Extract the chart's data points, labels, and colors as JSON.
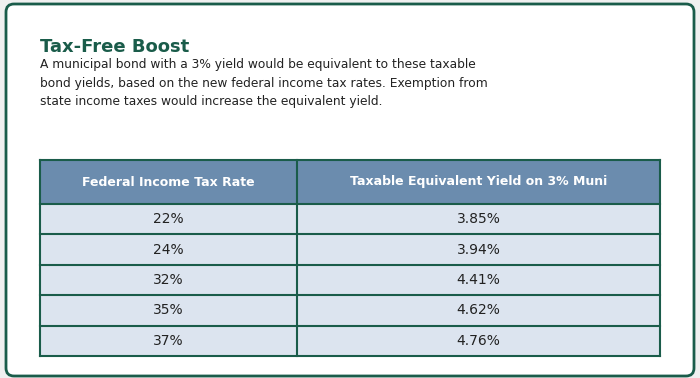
{
  "title": "Tax-Free Boost",
  "subtitle": "A municipal bond with a 3% yield would be equivalent to these taxable\nbond yields, based on the new federal income tax rates. Exemption from\nstate income taxes would increase the equivalent yield.",
  "col1_header": "Federal Income Tax Rate",
  "col2_header": "Taxable Equivalent Yield on 3% Muni",
  "rows": [
    [
      "22%",
      "3.85%"
    ],
    [
      "24%",
      "3.94%"
    ],
    [
      "32%",
      "4.41%"
    ],
    [
      "35%",
      "4.62%"
    ],
    [
      "37%",
      "4.76%"
    ]
  ],
  "header_bg": "#6b8cae",
  "row_bg": "#dce4ef",
  "border_color": "#1a5c4a",
  "title_color": "#1a5c4a",
  "header_text_color": "#ffffff",
  "row_text_color": "#222222",
  "subtitle_color": "#222222",
  "outer_bg": "#ffffff",
  "divider_color": "#1a5c4a",
  "fig_bg": "#f0f0f0"
}
